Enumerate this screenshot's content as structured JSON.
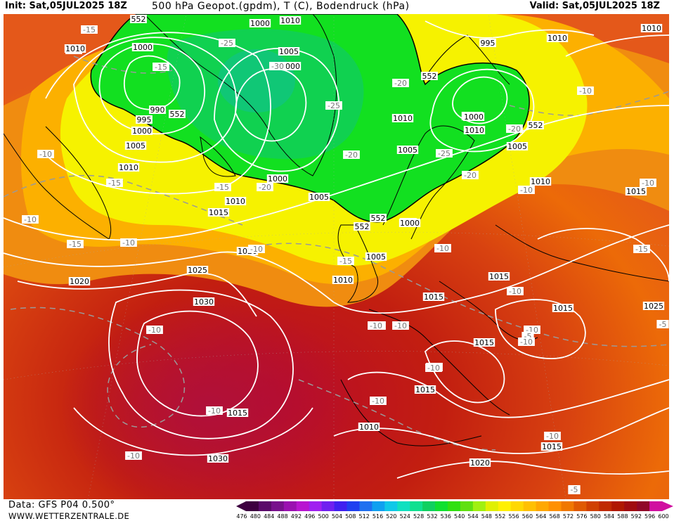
{
  "header": {
    "init": "Init: Sat,05JUL2025 18Z",
    "title": "500 hPa Geopot.(gpdm), T (C), Bodendruck (hPa)",
    "valid": "Valid: Sat,05JUL2025 18Z"
  },
  "footer": {
    "data_source": "Data: GFS P04 0.500°",
    "website": "WWW.WETTERZENTRALE.DE"
  },
  "colorbar": {
    "ticks": [
      "476",
      "480",
      "484",
      "488",
      "492",
      "496",
      "500",
      "504",
      "508",
      "512",
      "516",
      "520",
      "524",
      "528",
      "532",
      "536",
      "540",
      "544",
      "548",
      "552",
      "556",
      "560",
      "564",
      "568",
      "572",
      "576",
      "580",
      "584",
      "588",
      "592",
      "596",
      "600"
    ],
    "colors": [
      "#3d0040",
      "#5a0a6a",
      "#78108c",
      "#9a10b0",
      "#b815d0",
      "#a020f0",
      "#7020f0",
      "#4020f0",
      "#2040f0",
      "#2070f0",
      "#10a0f0",
      "#10c8e8",
      "#10e0c0",
      "#10e090",
      "#10d060",
      "#10e030",
      "#30e010",
      "#60e010",
      "#a0f010",
      "#e0f000",
      "#fff000",
      "#ffd800",
      "#ffc000",
      "#ffa800",
      "#ff9000",
      "#f07800",
      "#e05a00",
      "#d04000",
      "#c02a00",
      "#b01800",
      "#a00c10",
      "#900828",
      "#d010a0"
    ]
  },
  "map_labels": {
    "isobars": [
      "1000",
      "1010",
      "1000",
      "995",
      "990",
      "995",
      "1000",
      "1005",
      "1010",
      "1000",
      "1010",
      "1005",
      "1000",
      "1005",
      "1010",
      "1010",
      "1015",
      "1020",
      "1025",
      "1030",
      "1020",
      "1005",
      "1010",
      "995",
      "1005",
      "1010",
      "1000",
      "1005",
      "1005",
      "1010",
      "1015",
      "1015",
      "1015",
      "1015",
      "1015",
      "1015",
      "1010",
      "1015",
      "1030",
      "1025",
      "1020",
      "1015",
      "1010",
      "1010",
      "995",
      "1000",
      "1005"
    ],
    "geopotential": [
      "552",
      "552",
      "552",
      "552",
      "552",
      "552"
    ],
    "temperatures": [
      "-15",
      "-25",
      "-15",
      "-30",
      "-10",
      "-15",
      "-25",
      "-20",
      "-20",
      "-20",
      "-25",
      "-15",
      "-20",
      "-10",
      "-10",
      "-15",
      "-10",
      "-10",
      "-10",
      "-10",
      "-10",
      "-10",
      "-10",
      "-10",
      "-10",
      "-10",
      "-10",
      "-10",
      "-5",
      "-5",
      "-5",
      "-10",
      "-15",
      "-20",
      "-15",
      "-10",
      "-10",
      "-10",
      "-10",
      "-10",
      "-5"
    ]
  }
}
